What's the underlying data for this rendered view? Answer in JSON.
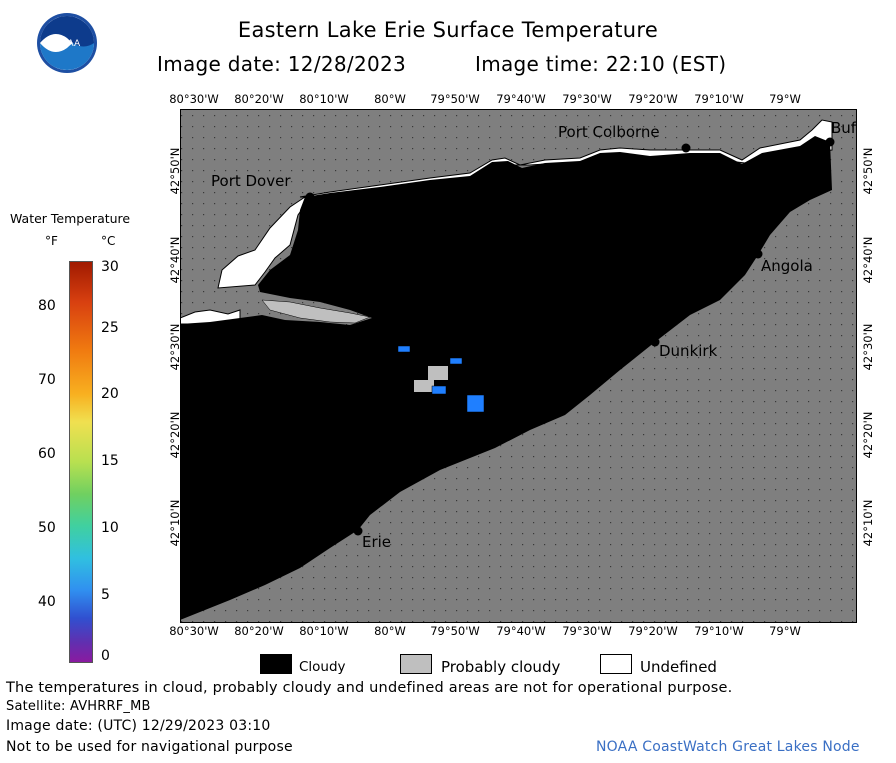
{
  "title": "Eastern Lake Erie Surface Temperature",
  "image_date_label": "Image date: 12/28/2023",
  "image_time_label": "Image time: 22:10 (EST)",
  "logo_text": "NOAA",
  "lon_labels": [
    "80°30'W",
    "80°20'W",
    "80°10'W",
    "80°W",
    "79°50'W",
    "79°40'W",
    "79°30'W",
    "79°20'W",
    "79°10'W",
    "79°W"
  ],
  "lat_labels": [
    "42°50'N",
    "42°40'N",
    "42°30'N",
    "42°20'N",
    "42°10'N"
  ],
  "places": {
    "port_colborne": "Port Colborne",
    "buffalo": "Buf",
    "port_dover": "Port Dover",
    "angola": "Angola",
    "dunkirk": "Dunkirk",
    "erie": "Erie"
  },
  "scale": {
    "title": "Water Temperature",
    "unit_f": "°F",
    "unit_c": "°C",
    "f_ticks": [
      "80",
      "70",
      "60",
      "50",
      "40"
    ],
    "c_ticks": [
      "30",
      "25",
      "20",
      "15",
      "10",
      "5",
      "0"
    ]
  },
  "legend": {
    "cloudy": "Cloudy",
    "probably_cloudy": "Probably cloudy",
    "undefined": "Undefined"
  },
  "footer": {
    "disclaimer": "The temperatures in cloud, probably cloudy and undefined areas are not for operational purpose.",
    "satellite": "Satellite: AVHRRF_MB",
    "utc_date": "Image date: (UTC) 12/29/2023  03:10",
    "nav_warning": "Not to be used for navigational purpose",
    "credit": "NOAA CoastWatch Great Lakes Node"
  },
  "colors": {
    "land": "#7f7f7f",
    "cloud": "#000000",
    "probably_cloudy": "#bfbfbf",
    "undefined": "#ffffff",
    "water_blue": "#1f7fff",
    "credit_text": "#3a6fc4"
  }
}
